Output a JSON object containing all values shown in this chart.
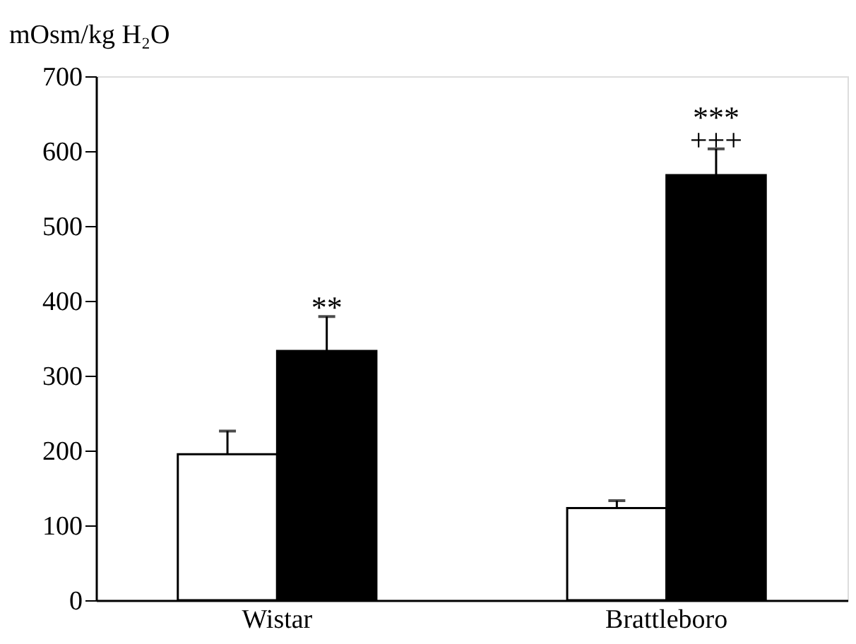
{
  "chart_data": {
    "type": "bar",
    "ylabel": "mOsm/kg H₂O",
    "categories": [
      "Wistar",
      "Brattleboro"
    ],
    "series": [
      {
        "color": "#ffffff",
        "values": [
          195,
          123
        ],
        "errors": [
          31,
          10
        ]
      },
      {
        "color": "#000000",
        "values": [
          333,
          568
        ],
        "errors": [
          46,
          35
        ]
      }
    ],
    "ylim": [
      0,
      700
    ],
    "yticks": [
      0,
      100,
      200,
      300,
      400,
      500,
      600,
      700
    ],
    "grid": false,
    "legend": false,
    "annotations": [
      "**",
      "***",
      "+++"
    ]
  }
}
